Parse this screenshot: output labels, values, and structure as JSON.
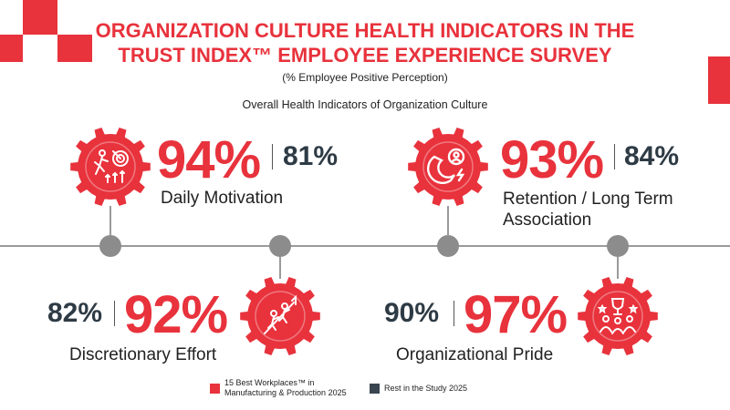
{
  "title_line1": "ORGANIZATION CULTURE HEALTH INDICATORS IN THE",
  "title_line2": "TRUST INDEX™ EMPLOYEE EXPERIENCE SURVEY",
  "subtitle": "(% Employee Positive Perception)",
  "section_title": "Overall Health Indicators of Organization Culture",
  "colors": {
    "accent": "#e8323c",
    "dark": "#2e3b45",
    "timeline": "#9a9a9a",
    "node": "#8c8c8c"
  },
  "chart_data": {
    "type": "table",
    "series": [
      {
        "name": "15 Best Workplaces™ in Manufacturing & Production 2025",
        "color": "#e8323c"
      },
      {
        "name": "Rest in the Study 2025",
        "color": "#3a4550"
      }
    ],
    "indicators": [
      {
        "label": "Daily Motivation",
        "best": "94%",
        "rest": "81%",
        "icon": "running-target-icon"
      },
      {
        "label": "Retention / Long Term Association",
        "label_line1": "Retention / Long Term",
        "label_line2": "Association",
        "best": "93%",
        "rest": "84%",
        "icon": "magnet-person-icon"
      },
      {
        "label": "Discretionary Effort",
        "best": "92%",
        "rest": "82%",
        "icon": "climbing-people-icon"
      },
      {
        "label": "Organizational Pride",
        "best": "97%",
        "rest": "90%",
        "icon": "team-trophy-icon"
      }
    ]
  },
  "legend": {
    "best_line1": "15 Best Workplaces™ in",
    "best_line2": "Manufacturing & Production 2025",
    "rest": "Rest in the Study 2025"
  }
}
